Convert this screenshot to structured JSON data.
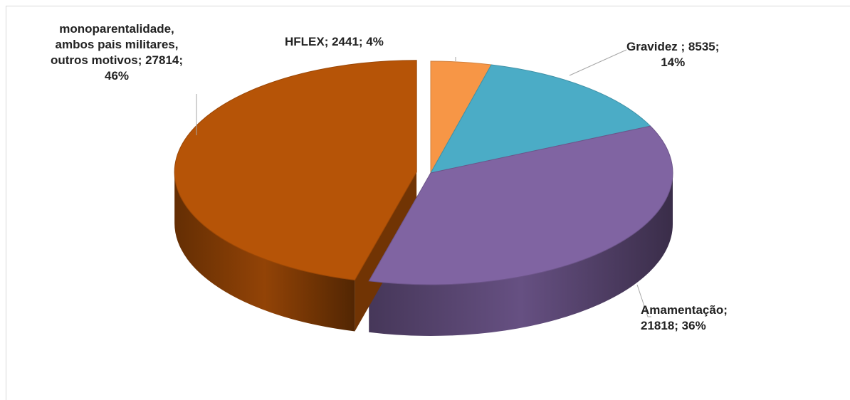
{
  "chart_data": {
    "type": "pie",
    "values": [
      2441,
      8535,
      21818,
      27814
    ],
    "value_labels": [
      "HFLEX; 2441; 4%",
      "Gravidez ; 8535;\n14%",
      "Amamentação;\n21818; 36%",
      "monoparentalidade,\nambos pais militares,\noutros motivos; 27814;\n46%"
    ],
    "colors": [
      "#f79646",
      "#4bacc6",
      "#8064a2",
      "#b65407"
    ],
    "exploded": [
      false,
      false,
      false,
      true
    ]
  }
}
